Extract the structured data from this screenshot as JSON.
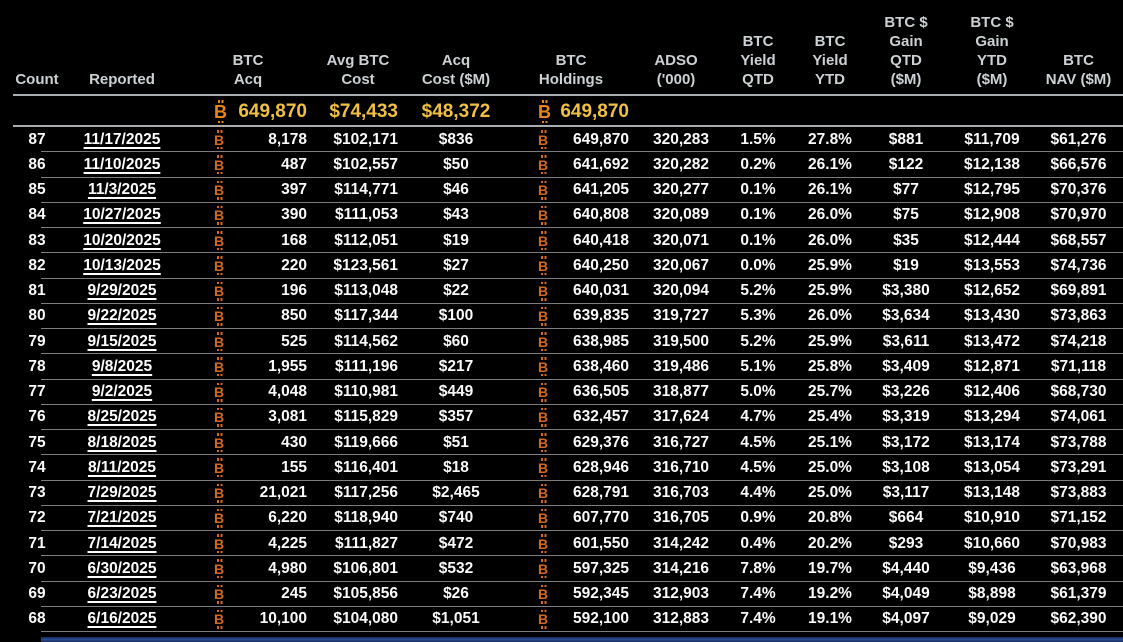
{
  "icons": {
    "bitcoin": "B"
  },
  "colors": {
    "background": "#000000",
    "header_text": "#ccd1d4",
    "row_text": "#fafafa",
    "row_btc_orange": "#d2691e",
    "summary_gold": "#f0c042",
    "summary_btc_orange": "#e8861c",
    "separator": "#7d7d7d",
    "strong_separator": "#a9adb0",
    "bottom_bar_blue": "#2a4d94"
  },
  "table": {
    "headers": [
      {
        "id": "count",
        "label": "Count"
      },
      {
        "id": "reported",
        "label": "Reported"
      },
      {
        "id": "btc_acq",
        "label": "BTC\nAcq"
      },
      {
        "id": "avg_btc_cost",
        "label": "Avg BTC\nCost"
      },
      {
        "id": "acq_cost_m",
        "label": "Acq\nCost ($M)"
      },
      {
        "id": "btc_holdings",
        "label": "BTC\nHoldings"
      },
      {
        "id": "adso",
        "label": "ADSO\n('000)"
      },
      {
        "id": "btc_yield_qtd",
        "label": "BTC\nYield\nQTD"
      },
      {
        "id": "btc_yield_ytd",
        "label": "BTC\nYield\nYTD"
      },
      {
        "id": "btc_gain_qtd",
        "label": "BTC $\nGain\nQTD\n($M)"
      },
      {
        "id": "btc_gain_ytd",
        "label": "BTC $\nGain\nYTD\n($M)"
      },
      {
        "id": "btc_nav",
        "label": "BTC\nNAV ($M)"
      }
    ],
    "summary": {
      "btc_acq": "649,870",
      "avg_btc_cost": "$74,433",
      "acq_cost_m": "$48,372",
      "btc_holdings": "649,870"
    },
    "rows": [
      {
        "count": "87",
        "date": "11/17/2025",
        "acq": "8,178",
        "avg_cost": "$102,171",
        "acq_cost": "$836",
        "holdings": "649,870",
        "adso": "320,283",
        "yield_qtd": "1.5%",
        "yield_ytd": "27.8%",
        "gain_qtd": "$881",
        "gain_ytd": "$11,709",
        "nav": "$61,276"
      },
      {
        "count": "86",
        "date": "11/10/2025",
        "acq": "487",
        "avg_cost": "$102,557",
        "acq_cost": "$50",
        "holdings": "641,692",
        "adso": "320,282",
        "yield_qtd": "0.2%",
        "yield_ytd": "26.1%",
        "gain_qtd": "$122",
        "gain_ytd": "$12,138",
        "nav": "$66,576"
      },
      {
        "count": "85",
        "date": "11/3/2025",
        "acq": "397",
        "avg_cost": "$114,771",
        "acq_cost": "$46",
        "holdings": "641,205",
        "adso": "320,277",
        "yield_qtd": "0.1%",
        "yield_ytd": "26.1%",
        "gain_qtd": "$77",
        "gain_ytd": "$12,795",
        "nav": "$70,376"
      },
      {
        "count": "84",
        "date": "10/27/2025",
        "acq": "390",
        "avg_cost": "$111,053",
        "acq_cost": "$43",
        "holdings": "640,808",
        "adso": "320,089",
        "yield_qtd": "0.1%",
        "yield_ytd": "26.0%",
        "gain_qtd": "$75",
        "gain_ytd": "$12,908",
        "nav": "$70,970"
      },
      {
        "count": "83",
        "date": "10/20/2025",
        "acq": "168",
        "avg_cost": "$112,051",
        "acq_cost": "$19",
        "holdings": "640,418",
        "adso": "320,071",
        "yield_qtd": "0.1%",
        "yield_ytd": "26.0%",
        "gain_qtd": "$35",
        "gain_ytd": "$12,444",
        "nav": "$68,557"
      },
      {
        "count": "82",
        "date": "10/13/2025",
        "acq": "220",
        "avg_cost": "$123,561",
        "acq_cost": "$27",
        "holdings": "640,250",
        "adso": "320,067",
        "yield_qtd": "0.0%",
        "yield_ytd": "25.9%",
        "gain_qtd": "$19",
        "gain_ytd": "$13,553",
        "nav": "$74,736"
      },
      {
        "count": "81",
        "date": "9/29/2025",
        "acq": "196",
        "avg_cost": "$113,048",
        "acq_cost": "$22",
        "holdings": "640,031",
        "adso": "320,094",
        "yield_qtd": "5.2%",
        "yield_ytd": "25.9%",
        "gain_qtd": "$3,380",
        "gain_ytd": "$12,652",
        "nav": "$69,891"
      },
      {
        "count": "80",
        "date": "9/22/2025",
        "acq": "850",
        "avg_cost": "$117,344",
        "acq_cost": "$100",
        "holdings": "639,835",
        "adso": "319,727",
        "yield_qtd": "5.3%",
        "yield_ytd": "26.0%",
        "gain_qtd": "$3,634",
        "gain_ytd": "$13,430",
        "nav": "$73,863"
      },
      {
        "count": "79",
        "date": "9/15/2025",
        "acq": "525",
        "avg_cost": "$114,562",
        "acq_cost": "$60",
        "holdings": "638,985",
        "adso": "319,500",
        "yield_qtd": "5.2%",
        "yield_ytd": "25.9%",
        "gain_qtd": "$3,611",
        "gain_ytd": "$13,472",
        "nav": "$74,218"
      },
      {
        "count": "78",
        "date": "9/8/2025",
        "acq": "1,955",
        "avg_cost": "$111,196",
        "acq_cost": "$217",
        "holdings": "638,460",
        "adso": "319,486",
        "yield_qtd": "5.1%",
        "yield_ytd": "25.8%",
        "gain_qtd": "$3,409",
        "gain_ytd": "$12,871",
        "nav": "$71,118"
      },
      {
        "count": "77",
        "date": "9/2/2025",
        "acq": "4,048",
        "avg_cost": "$110,981",
        "acq_cost": "$449",
        "holdings": "636,505",
        "adso": "318,877",
        "yield_qtd": "5.0%",
        "yield_ytd": "25.7%",
        "gain_qtd": "$3,226",
        "gain_ytd": "$12,406",
        "nav": "$68,730"
      },
      {
        "count": "76",
        "date": "8/25/2025",
        "acq": "3,081",
        "avg_cost": "$115,829",
        "acq_cost": "$357",
        "holdings": "632,457",
        "adso": "317,624",
        "yield_qtd": "4.7%",
        "yield_ytd": "25.4%",
        "gain_qtd": "$3,319",
        "gain_ytd": "$13,294",
        "nav": "$74,061"
      },
      {
        "count": "75",
        "date": "8/18/2025",
        "acq": "430",
        "avg_cost": "$119,666",
        "acq_cost": "$51",
        "holdings": "629,376",
        "adso": "316,727",
        "yield_qtd": "4.5%",
        "yield_ytd": "25.1%",
        "gain_qtd": "$3,172",
        "gain_ytd": "$13,174",
        "nav": "$73,788"
      },
      {
        "count": "74",
        "date": "8/11/2025",
        "acq": "155",
        "avg_cost": "$116,401",
        "acq_cost": "$18",
        "holdings": "628,946",
        "adso": "316,710",
        "yield_qtd": "4.5%",
        "yield_ytd": "25.0%",
        "gain_qtd": "$3,108",
        "gain_ytd": "$13,054",
        "nav": "$73,291"
      },
      {
        "count": "73",
        "date": "7/29/2025",
        "acq": "21,021",
        "avg_cost": "$117,256",
        "acq_cost": "$2,465",
        "holdings": "628,791",
        "adso": "316,703",
        "yield_qtd": "4.4%",
        "yield_ytd": "25.0%",
        "gain_qtd": "$3,117",
        "gain_ytd": "$13,148",
        "nav": "$73,883"
      },
      {
        "count": "72",
        "date": "7/21/2025",
        "acq": "6,220",
        "avg_cost": "$118,940",
        "acq_cost": "$740",
        "holdings": "607,770",
        "adso": "316,705",
        "yield_qtd": "0.9%",
        "yield_ytd": "20.8%",
        "gain_qtd": "$664",
        "gain_ytd": "$10,910",
        "nav": "$71,152"
      },
      {
        "count": "71",
        "date": "7/14/2025",
        "acq": "4,225",
        "avg_cost": "$111,827",
        "acq_cost": "$472",
        "holdings": "601,550",
        "adso": "314,242",
        "yield_qtd": "0.4%",
        "yield_ytd": "20.2%",
        "gain_qtd": "$293",
        "gain_ytd": "$10,660",
        "nav": "$70,983"
      },
      {
        "count": "70",
        "date": "6/30/2025",
        "acq": "4,980",
        "avg_cost": "$106,801",
        "acq_cost": "$532",
        "holdings": "597,325",
        "adso": "314,216",
        "yield_qtd": "7.8%",
        "yield_ytd": "19.7%",
        "gain_qtd": "$4,440",
        "gain_ytd": "$9,436",
        "nav": "$63,968"
      },
      {
        "count": "69",
        "date": "6/23/2025",
        "acq": "245",
        "avg_cost": "$105,856",
        "acq_cost": "$26",
        "holdings": "592,345",
        "adso": "312,903",
        "yield_qtd": "7.4%",
        "yield_ytd": "19.2%",
        "gain_qtd": "$4,049",
        "gain_ytd": "$8,898",
        "nav": "$61,379"
      },
      {
        "count": "68",
        "date": "6/16/2025",
        "acq": "10,100",
        "avg_cost": "$104,080",
        "acq_cost": "$1,051",
        "holdings": "592,100",
        "adso": "312,883",
        "yield_qtd": "7.4%",
        "yield_ytd": "19.1%",
        "gain_qtd": "$4,097",
        "gain_ytd": "$9,029",
        "nav": "$62,390"
      }
    ]
  }
}
